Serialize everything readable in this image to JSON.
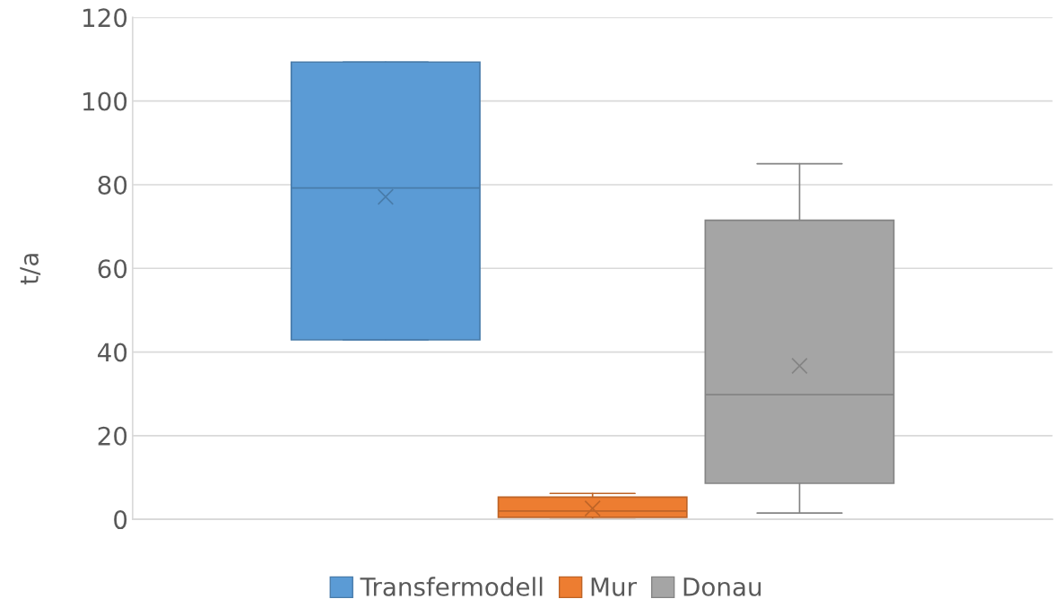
{
  "chart_data": {
    "type": "box",
    "ylabel": "t/a",
    "categories": [
      null
    ],
    "series": [
      {
        "name": "Transfermodell",
        "color": "#5b9bd5",
        "boxes": [
          {
            "low": 42.9,
            "q1": 42.9,
            "median": 79.2,
            "q3": 109.3,
            "high": 109.3,
            "mean": 77.1
          }
        ]
      },
      {
        "name": "Mur",
        "color": "#ed7d31",
        "boxes": [
          {
            "low": 0.0,
            "q1": 0.5,
            "median": 2.0,
            "q3": 5.3,
            "high": 6.2,
            "mean": 2.6
          }
        ]
      },
      {
        "name": "Donau",
        "color": "#a5a5a5",
        "boxes": [
          {
            "low": 1.5,
            "q1": 8.6,
            "median": 29.8,
            "q3": 71.5,
            "high": 85.0,
            "mean": 36.7
          }
        ]
      }
    ],
    "ylim": [
      0,
      120
    ],
    "yticks": [
      0,
      20,
      40,
      60,
      80,
      100,
      120
    ],
    "grid": "y",
    "legend": "bottom",
    "tick_labels": "y"
  }
}
